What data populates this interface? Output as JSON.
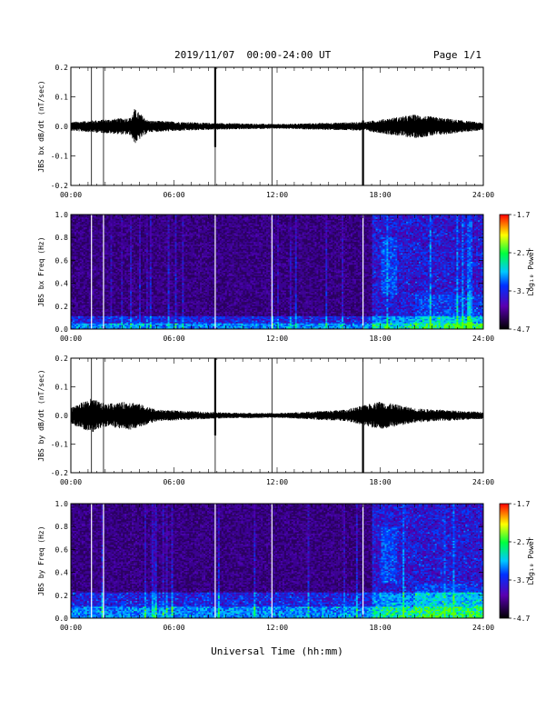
{
  "header": {
    "date_range": "2019/11/07  00:00-24:00 UT",
    "page": "Page 1/1"
  },
  "xaxis": {
    "label": "Universal Time (hh:mm)",
    "ticks": [
      "00:00",
      "06:00",
      "12:00",
      "18:00",
      "24:00"
    ]
  },
  "colorbar": {
    "label": "Log₁₀ Power",
    "ticks": [
      "-1.7",
      "-2.7",
      "-3.7",
      "-4.7"
    ],
    "range": [
      -4.7,
      -1.7
    ]
  },
  "chart_data": [
    {
      "type": "line",
      "ylabel": "JBS bx dB/dt (nT/sec)",
      "ylim": [
        -0.2,
        0.2
      ],
      "yticks": [
        "0.2",
        "0.1",
        "0.0",
        "-0.1",
        "-0.2"
      ],
      "x_range_hours": [
        0,
        24
      ],
      "vertical_markers_hours": [
        1.2,
        1.9,
        8.4,
        11.7,
        17.0
      ],
      "spike_peaks_hours": [
        {
          "x": 8.4,
          "max": 0.2,
          "min": -0.07
        },
        {
          "x": 17.0,
          "max": 0.02,
          "min": -0.2
        }
      ],
      "envelope": [
        {
          "x": 0,
          "amp": 0.015
        },
        {
          "x": 3.5,
          "amp": 0.03
        },
        {
          "x": 3.7,
          "amp": 0.06
        },
        {
          "x": 4.5,
          "amp": 0.02
        },
        {
          "x": 8,
          "amp": 0.012
        },
        {
          "x": 12,
          "amp": 0.008
        },
        {
          "x": 17,
          "amp": 0.015
        },
        {
          "x": 20,
          "amp": 0.04
        },
        {
          "x": 24,
          "amp": 0.012
        }
      ]
    },
    {
      "type": "heatmap",
      "ylabel": "JBS bx Freq (Hz)",
      "ylim": [
        0.0,
        1.0
      ],
      "yticks": [
        "1.0",
        "0.8",
        "0.6",
        "0.4",
        "0.2",
        "0.0"
      ],
      "x_range_hours": [
        0,
        24
      ],
      "vertical_markers_hours": [
        1.2,
        1.9,
        8.4,
        11.7,
        17.0
      ],
      "enhanced_interval_hours": [
        17.5,
        24
      ],
      "low_freq_band_hz": 0.05
    },
    {
      "type": "line",
      "ylabel": "JBS by dB/dt (nT/sec)",
      "ylim": [
        -0.2,
        0.2
      ],
      "yticks": [
        "0.2",
        "0.1",
        "0.0",
        "-0.1",
        "-0.2"
      ],
      "x_range_hours": [
        0,
        24
      ],
      "vertical_markers_hours": [
        1.2,
        1.9,
        8.4,
        11.7,
        17.0
      ],
      "spike_peaks_hours": [
        {
          "x": 8.4,
          "max": 0.2,
          "min": -0.07
        },
        {
          "x": 17.0,
          "max": 0.02,
          "min": -0.2
        }
      ],
      "envelope": [
        {
          "x": 0,
          "amp": 0.03
        },
        {
          "x": 1.2,
          "amp": 0.06
        },
        {
          "x": 2,
          "amp": 0.04
        },
        {
          "x": 3.5,
          "amp": 0.05
        },
        {
          "x": 5,
          "amp": 0.02
        },
        {
          "x": 9,
          "amp": 0.01
        },
        {
          "x": 12,
          "amp": 0.008
        },
        {
          "x": 16,
          "amp": 0.02
        },
        {
          "x": 18,
          "amp": 0.05
        },
        {
          "x": 20,
          "amp": 0.025
        },
        {
          "x": 24,
          "amp": 0.012
        }
      ]
    },
    {
      "type": "heatmap",
      "ylabel": "JBS by Freq (Hz)",
      "ylim": [
        0.0,
        1.0
      ],
      "yticks": [
        "1.0",
        "0.8",
        "0.6",
        "0.4",
        "0.2",
        "0.0"
      ],
      "x_range_hours": [
        0,
        24
      ],
      "vertical_markers_hours": [
        1.2,
        1.9,
        8.4,
        11.7,
        17.0
      ],
      "enhanced_interval_hours": [
        17.5,
        24
      ],
      "low_freq_band_hz": 0.1
    }
  ]
}
